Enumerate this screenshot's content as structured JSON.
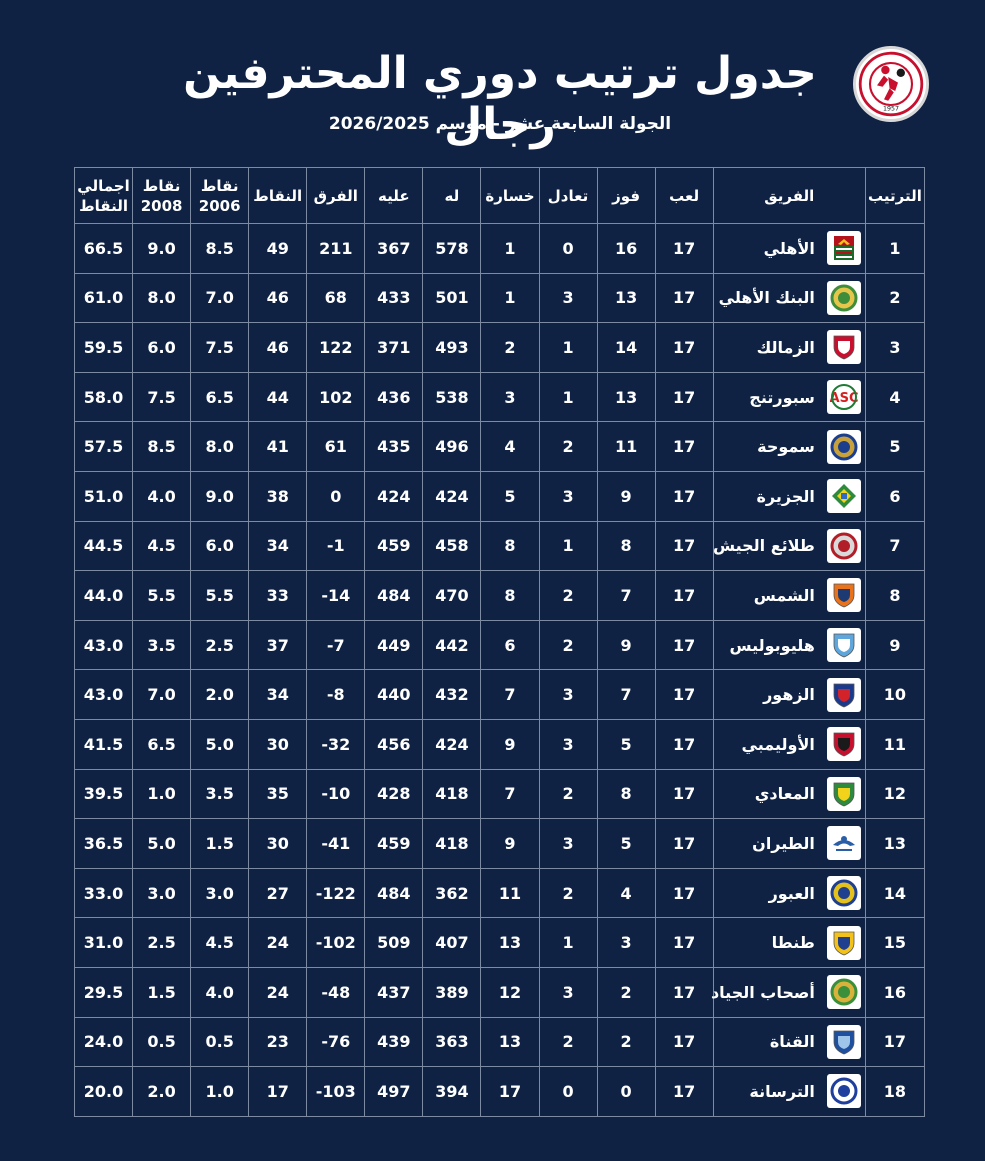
{
  "header": {
    "title": "جدول ترتيب دوري المحترفين رجال",
    "subtitle": "الجولة السابعة عشر - موسم 2026/2025",
    "logo_year": "1957"
  },
  "columns": {
    "total": "اجمالي النقاط",
    "pts2008": "نقاط 2008",
    "pts2006": "نقاط 2006",
    "points": "النقاط",
    "diff": "الفرق",
    "against": "عليه",
    "for": "له",
    "lost": "خسارة",
    "drawn": "تعادل",
    "won": "فوز",
    "played": "لعب",
    "team": "الفريق",
    "rank": "الترتيب"
  },
  "colors": {
    "background": "#0f2243",
    "grid": "#7c8aa2",
    "text": "#ffffff"
  },
  "rows": [
    {
      "rank": "1",
      "team": "الأهلي",
      "crest": "eagle-crest-icon",
      "crest_colors": [
        "#b3131b",
        "#1c6b2a"
      ],
      "played": "17",
      "won": "16",
      "drawn": "0",
      "lost": "1",
      "for": "578",
      "against": "367",
      "diff": "211",
      "points": "49",
      "pts2006": "8.5",
      "pts2008": "9.0",
      "total": "66.5"
    },
    {
      "rank": "2",
      "team": "البنك الأهلي",
      "crest": "round-crest-icon",
      "crest_colors": [
        "#3e8d3a",
        "#e6c64a"
      ],
      "played": "17",
      "won": "13",
      "drawn": "3",
      "lost": "1",
      "for": "501",
      "against": "433",
      "diff": "68",
      "points": "46",
      "pts2006": "7.0",
      "pts2008": "8.0",
      "total": "61.0"
    },
    {
      "rank": "3",
      "team": "الزمالك",
      "crest": "shield-crest-icon",
      "crest_colors": [
        "#c8102e",
        "#ffffff"
      ],
      "played": "17",
      "won": "14",
      "drawn": "1",
      "lost": "2",
      "for": "493",
      "against": "371",
      "diff": "122",
      "points": "46",
      "pts2006": "7.5",
      "pts2008": "6.0",
      "total": "59.5"
    },
    {
      "rank": "4",
      "team": "سبورتنج",
      "crest": "asc-crest-icon",
      "crest_colors": [
        "#1e7a34",
        "#d42020"
      ],
      "played": "17",
      "won": "13",
      "drawn": "1",
      "lost": "3",
      "for": "538",
      "against": "436",
      "diff": "102",
      "points": "44",
      "pts2006": "6.5",
      "pts2008": "7.5",
      "total": "58.0"
    },
    {
      "rank": "5",
      "team": "سموحة",
      "crest": "round-crest-icon",
      "crest_colors": [
        "#1b3f8c",
        "#c8a13a"
      ],
      "played": "17",
      "won": "11",
      "drawn": "2",
      "lost": "4",
      "for": "496",
      "against": "435",
      "diff": "61",
      "points": "41",
      "pts2006": "8.0",
      "pts2008": "8.5",
      "total": "57.5"
    },
    {
      "rank": "6",
      "team": "الجزيرة",
      "crest": "diamond-crest-icon",
      "crest_colors": [
        "#2e8b3d",
        "#2e6bc4"
      ],
      "played": "17",
      "won": "9",
      "drawn": "3",
      "lost": "5",
      "for": "424",
      "against": "424",
      "diff": "0",
      "points": "38",
      "pts2006": "9.0",
      "pts2008": "4.0",
      "total": "51.0"
    },
    {
      "rank": "7",
      "team": "طلائع الجيش",
      "crest": "round-crest-icon",
      "crest_colors": [
        "#b21e28",
        "#d9d9d9"
      ],
      "played": "17",
      "won": "8",
      "drawn": "1",
      "lost": "8",
      "for": "458",
      "against": "459",
      "diff": "-1",
      "points": "34",
      "pts2006": "6.0",
      "pts2008": "4.5",
      "total": "44.5"
    },
    {
      "rank": "8",
      "team": "الشمس",
      "crest": "shield-crest-icon",
      "crest_colors": [
        "#e8731c",
        "#1d3b72"
      ],
      "played": "17",
      "won": "7",
      "drawn": "2",
      "lost": "8",
      "for": "470",
      "against": "484",
      "diff": "-14",
      "points": "33",
      "pts2006": "5.5",
      "pts2008": "5.5",
      "total": "44.0"
    },
    {
      "rank": "9",
      "team": "هليوبوليس",
      "crest": "shield-crest-icon",
      "crest_colors": [
        "#5fa6dd",
        "#ffffff"
      ],
      "played": "17",
      "won": "9",
      "drawn": "2",
      "lost": "6",
      "for": "442",
      "against": "449",
      "diff": "-7",
      "points": "37",
      "pts2006": "2.5",
      "pts2008": "3.5",
      "total": "43.0"
    },
    {
      "rank": "10",
      "team": "الزهور",
      "crest": "shield-crest-icon",
      "crest_colors": [
        "#1c3a8c",
        "#d2232a"
      ],
      "played": "17",
      "won": "7",
      "drawn": "3",
      "lost": "7",
      "for": "432",
      "against": "440",
      "diff": "-8",
      "points": "34",
      "pts2006": "2.0",
      "pts2008": "7.0",
      "total": "43.0"
    },
    {
      "rank": "11",
      "team": "الأوليمبي",
      "crest": "shield-crest-icon",
      "crest_colors": [
        "#c8102e",
        "#1a1a1a"
      ],
      "played": "17",
      "won": "5",
      "drawn": "3",
      "lost": "9",
      "for": "424",
      "against": "456",
      "diff": "-32",
      "points": "30",
      "pts2006": "5.0",
      "pts2008": "6.5",
      "total": "41.5"
    },
    {
      "rank": "12",
      "team": "المعادي",
      "crest": "shield-crest-icon",
      "crest_colors": [
        "#2e8b3d",
        "#f2d21b"
      ],
      "played": "17",
      "won": "8",
      "drawn": "2",
      "lost": "7",
      "for": "418",
      "against": "428",
      "diff": "-10",
      "points": "35",
      "pts2006": "3.5",
      "pts2008": "1.0",
      "total": "39.5"
    },
    {
      "rank": "13",
      "team": "الطيران",
      "crest": "wing-crest-icon",
      "crest_colors": [
        "#2a5fa8",
        "#ffffff"
      ],
      "played": "17",
      "won": "5",
      "drawn": "3",
      "lost": "9",
      "for": "418",
      "against": "459",
      "diff": "-41",
      "points": "30",
      "pts2006": "1.5",
      "pts2008": "5.0",
      "total": "36.5"
    },
    {
      "rank": "14",
      "team": "العبور",
      "crest": "round-crest-icon",
      "crest_colors": [
        "#1f3f8f",
        "#e4c21b"
      ],
      "played": "17",
      "won": "4",
      "drawn": "2",
      "lost": "11",
      "for": "362",
      "against": "484",
      "diff": "-122",
      "points": "27",
      "pts2006": "3.0",
      "pts2008": "3.0",
      "total": "33.0"
    },
    {
      "rank": "15",
      "team": "طنطا",
      "crest": "shield-crest-icon",
      "crest_colors": [
        "#f2c21b",
        "#1f3f8f"
      ],
      "played": "17",
      "won": "3",
      "drawn": "1",
      "lost": "13",
      "for": "407",
      "against": "509",
      "diff": "-102",
      "points": "24",
      "pts2006": "4.5",
      "pts2008": "2.5",
      "total": "31.0"
    },
    {
      "rank": "16",
      "team": "أصحاب الجياد",
      "crest": "round-crest-icon",
      "crest_colors": [
        "#3a8f3a",
        "#d9b23c"
      ],
      "played": "17",
      "won": "2",
      "drawn": "3",
      "lost": "12",
      "for": "389",
      "against": "437",
      "diff": "-48",
      "points": "24",
      "pts2006": "4.0",
      "pts2008": "1.5",
      "total": "29.5"
    },
    {
      "rank": "17",
      "team": "القناة",
      "crest": "shield-crest-icon",
      "crest_colors": [
        "#1f4f9f",
        "#9ec4ea"
      ],
      "played": "17",
      "won": "2",
      "drawn": "2",
      "lost": "13",
      "for": "363",
      "against": "439",
      "diff": "-76",
      "points": "23",
      "pts2006": "0.5",
      "pts2008": "0.5",
      "total": "24.0"
    },
    {
      "rank": "18",
      "team": "الترسانة",
      "crest": "round-crest-icon",
      "crest_colors": [
        "#1f3f9f",
        "#ffffff"
      ],
      "played": "17",
      "won": "0",
      "drawn": "0",
      "lost": "17",
      "for": "394",
      "against": "497",
      "diff": "-103",
      "points": "17",
      "pts2006": "1.0",
      "pts2008": "2.0",
      "total": "20.0"
    }
  ]
}
